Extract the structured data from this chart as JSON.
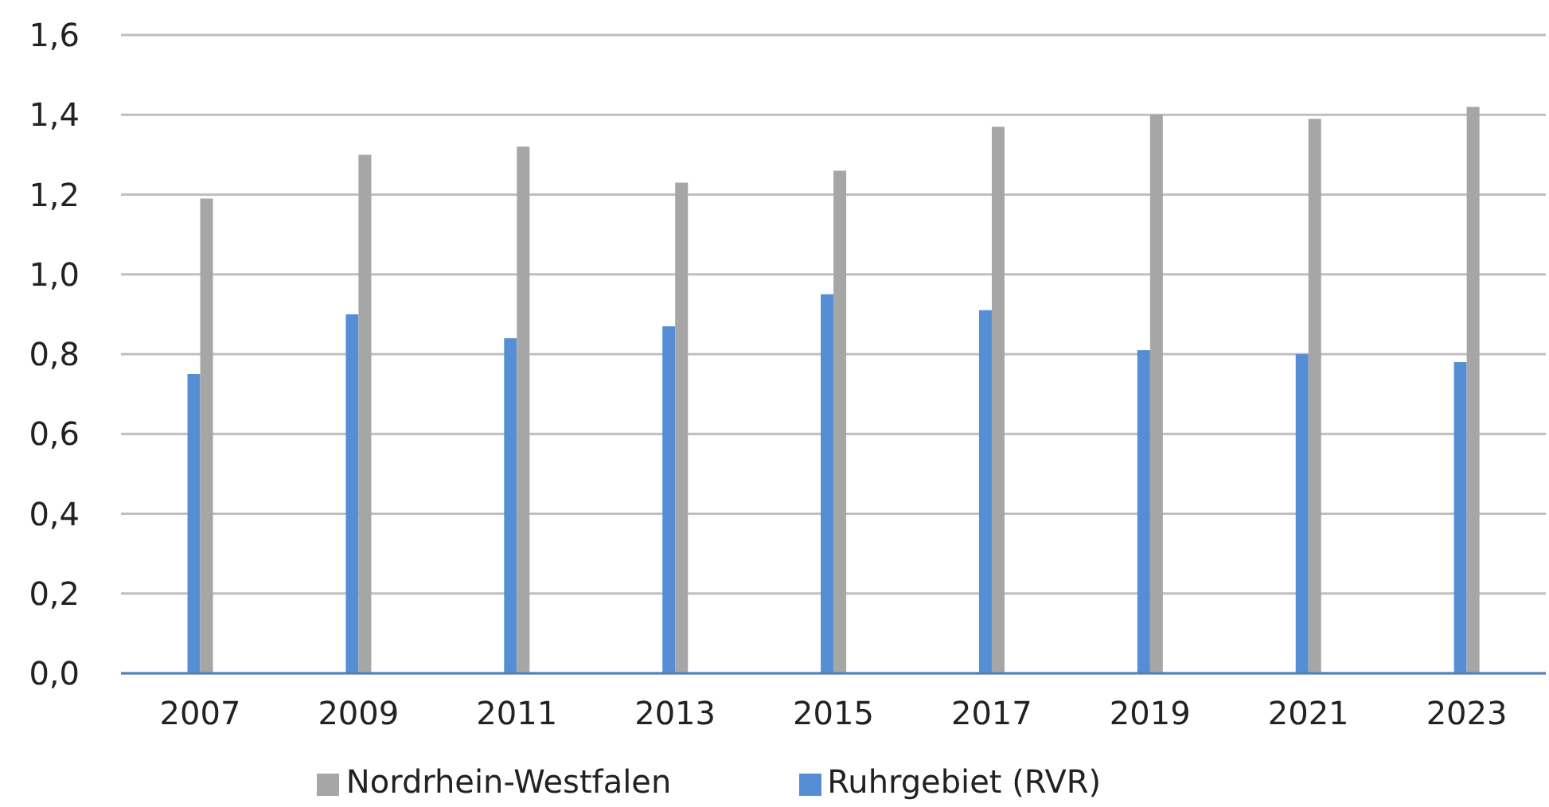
{
  "chart_data": {
    "type": "bar",
    "categories": [
      "2007",
      "2009",
      "2011",
      "2013",
      "2015",
      "2017",
      "2019",
      "2021",
      "2023"
    ],
    "series": [
      {
        "name": "Ruhrgebiet (RVR)",
        "color": "#558ed5",
        "values": [
          0.75,
          0.9,
          0.84,
          0.87,
          0.95,
          0.91,
          0.81,
          0.8,
          0.78
        ]
      },
      {
        "name": "Nordrhein-Westfalen",
        "color": "#a6a6a6",
        "values": [
          1.19,
          1.3,
          1.32,
          1.23,
          1.26,
          1.37,
          1.4,
          1.39,
          1.42
        ]
      }
    ],
    "ylim": [
      0,
      1.6
    ],
    "yticks": [
      {
        "value": 0,
        "label": "0,0"
      },
      {
        "value": 0.2,
        "label": "0,2"
      },
      {
        "value": 0.4,
        "label": "0,4"
      },
      {
        "value": 0.6,
        "label": "0,6"
      },
      {
        "value": 0.8,
        "label": "0,8"
      },
      {
        "value": 1,
        "label": "1,0"
      },
      {
        "value": 1.2,
        "label": "1,2"
      },
      {
        "value": 1.4,
        "label": "1,4"
      },
      {
        "value": 1.6,
        "label": "1,6"
      }
    ],
    "grid": "y",
    "legend": "bottom"
  }
}
